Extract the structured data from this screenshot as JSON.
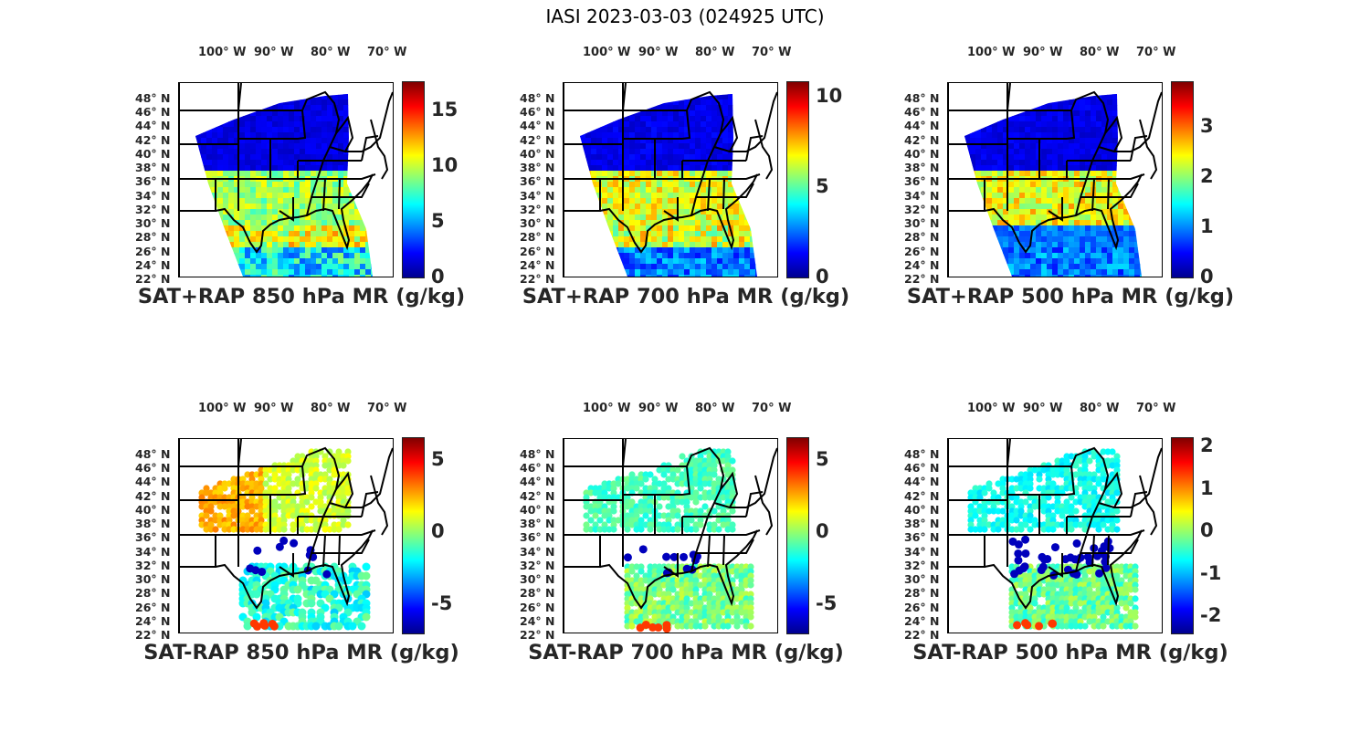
{
  "title": "IASI 2023-03-03 (024925 UTC)",
  "colormap": [
    "#00008f",
    "#0000ff",
    "#0080ff",
    "#00ffff",
    "#80ff80",
    "#ffff00",
    "#ff8000",
    "#ff0000",
    "#800000"
  ],
  "chart_data": [
    {
      "type": "heatmap",
      "title": "SAT+RAP 850 hPa MR (g/kg)",
      "xticks": [
        "100° W",
        "90° W",
        "80° W",
        "70° W"
      ],
      "yticks": [
        "48° N",
        "46° N",
        "44° N",
        "42° N",
        "40° N",
        "38° N",
        "36° N",
        "34° N",
        "32° N",
        "30° N",
        "28° N",
        "26° N",
        "24° N",
        "22° N"
      ],
      "clim": [
        0,
        17.5
      ],
      "cticks": [
        0,
        5,
        10,
        15
      ],
      "mode": "full",
      "field": {
        "north": 1.5,
        "band_south": 10,
        "gulf_coast": 13,
        "gulf": 6
      }
    },
    {
      "type": "heatmap",
      "title": "SAT+RAP 700 hPa MR (g/kg)",
      "xticks": [
        "100° W",
        "90° W",
        "80° W",
        "70° W"
      ],
      "yticks": [
        "48° N",
        "46° N",
        "44° N",
        "42° N",
        "40° N",
        "38° N",
        "36° N",
        "34° N",
        "32° N",
        "30° N",
        "28° N",
        "26° N",
        "24° N",
        "22° N"
      ],
      "clim": [
        0,
        10.8
      ],
      "cticks": [
        0,
        5,
        10
      ],
      "mode": "full",
      "field": {
        "north": 1,
        "band_south": 7,
        "gulf_coast": 8,
        "gulf": 2.5
      }
    },
    {
      "type": "heatmap",
      "title": "SAT+RAP 500 hPa MR (g/kg)",
      "xticks": [
        "100° W",
        "90° W",
        "80° W",
        "70° W"
      ],
      "yticks": [
        "48° N",
        "46° N",
        "44° N",
        "42° N",
        "40° N",
        "38° N",
        "36° N",
        "34° N",
        "32° N",
        "30° N",
        "28° N",
        "26° N",
        "24° N",
        "22° N"
      ],
      "clim": [
        0,
        3.9
      ],
      "cticks": [
        0,
        1,
        2,
        3
      ],
      "mode": "full",
      "field": {
        "north": 0.35,
        "band_south": 2.6,
        "gulf_coast": 1.2,
        "gulf": 0.9
      }
    },
    {
      "type": "heatmap",
      "title": "SAT-RAP 850 hPa MR (g/kg)",
      "xticks": [
        "100° W",
        "90° W",
        "80° W",
        "70° W"
      ],
      "yticks": [
        "48° N",
        "46° N",
        "44° N",
        "42° N",
        "40° N",
        "38° N",
        "36° N",
        "34° N",
        "32° N",
        "30° N",
        "28° N",
        "26° N",
        "24° N",
        "22° N"
      ],
      "clim": [
        -7,
        6.5
      ],
      "cticks": [
        -5,
        0,
        5
      ],
      "mode": "diff",
      "field": {
        "north": 0.8,
        "west": 2.5,
        "gulf": -1.5
      }
    },
    {
      "type": "heatmap",
      "title": "SAT-RAP 700 hPa MR (g/kg)",
      "xticks": [
        "100° W",
        "90° W",
        "80° W",
        "70° W"
      ],
      "yticks": [
        "48° N",
        "46° N",
        "44° N",
        "42° N",
        "40° N",
        "38° N",
        "36° N",
        "34° N",
        "32° N",
        "30° N",
        "28° N",
        "26° N",
        "24° N",
        "22° N"
      ],
      "clim": [
        -7,
        6.5
      ],
      "cticks": [
        -5,
        0,
        5
      ],
      "mode": "diff",
      "field": {
        "north": -1,
        "west": -1,
        "gulf": -0.3
      }
    },
    {
      "type": "heatmap",
      "title": "SAT-RAP 500 hPa MR (g/kg)",
      "xticks": [
        "100° W",
        "90° W",
        "80° W",
        "70° W"
      ],
      "yticks": [
        "48° N",
        "46° N",
        "44° N",
        "42° N",
        "40° N",
        "38° N",
        "36° N",
        "34° N",
        "32° N",
        "30° N",
        "28° N",
        "26° N",
        "24° N",
        "22° N"
      ],
      "clim": [
        -2.4,
        2.2
      ],
      "cticks": [
        -2,
        -1,
        0,
        1,
        2
      ],
      "mode": "diff",
      "field": {
        "north": -0.6,
        "west": -0.6,
        "gulf": -0.2
      }
    }
  ]
}
